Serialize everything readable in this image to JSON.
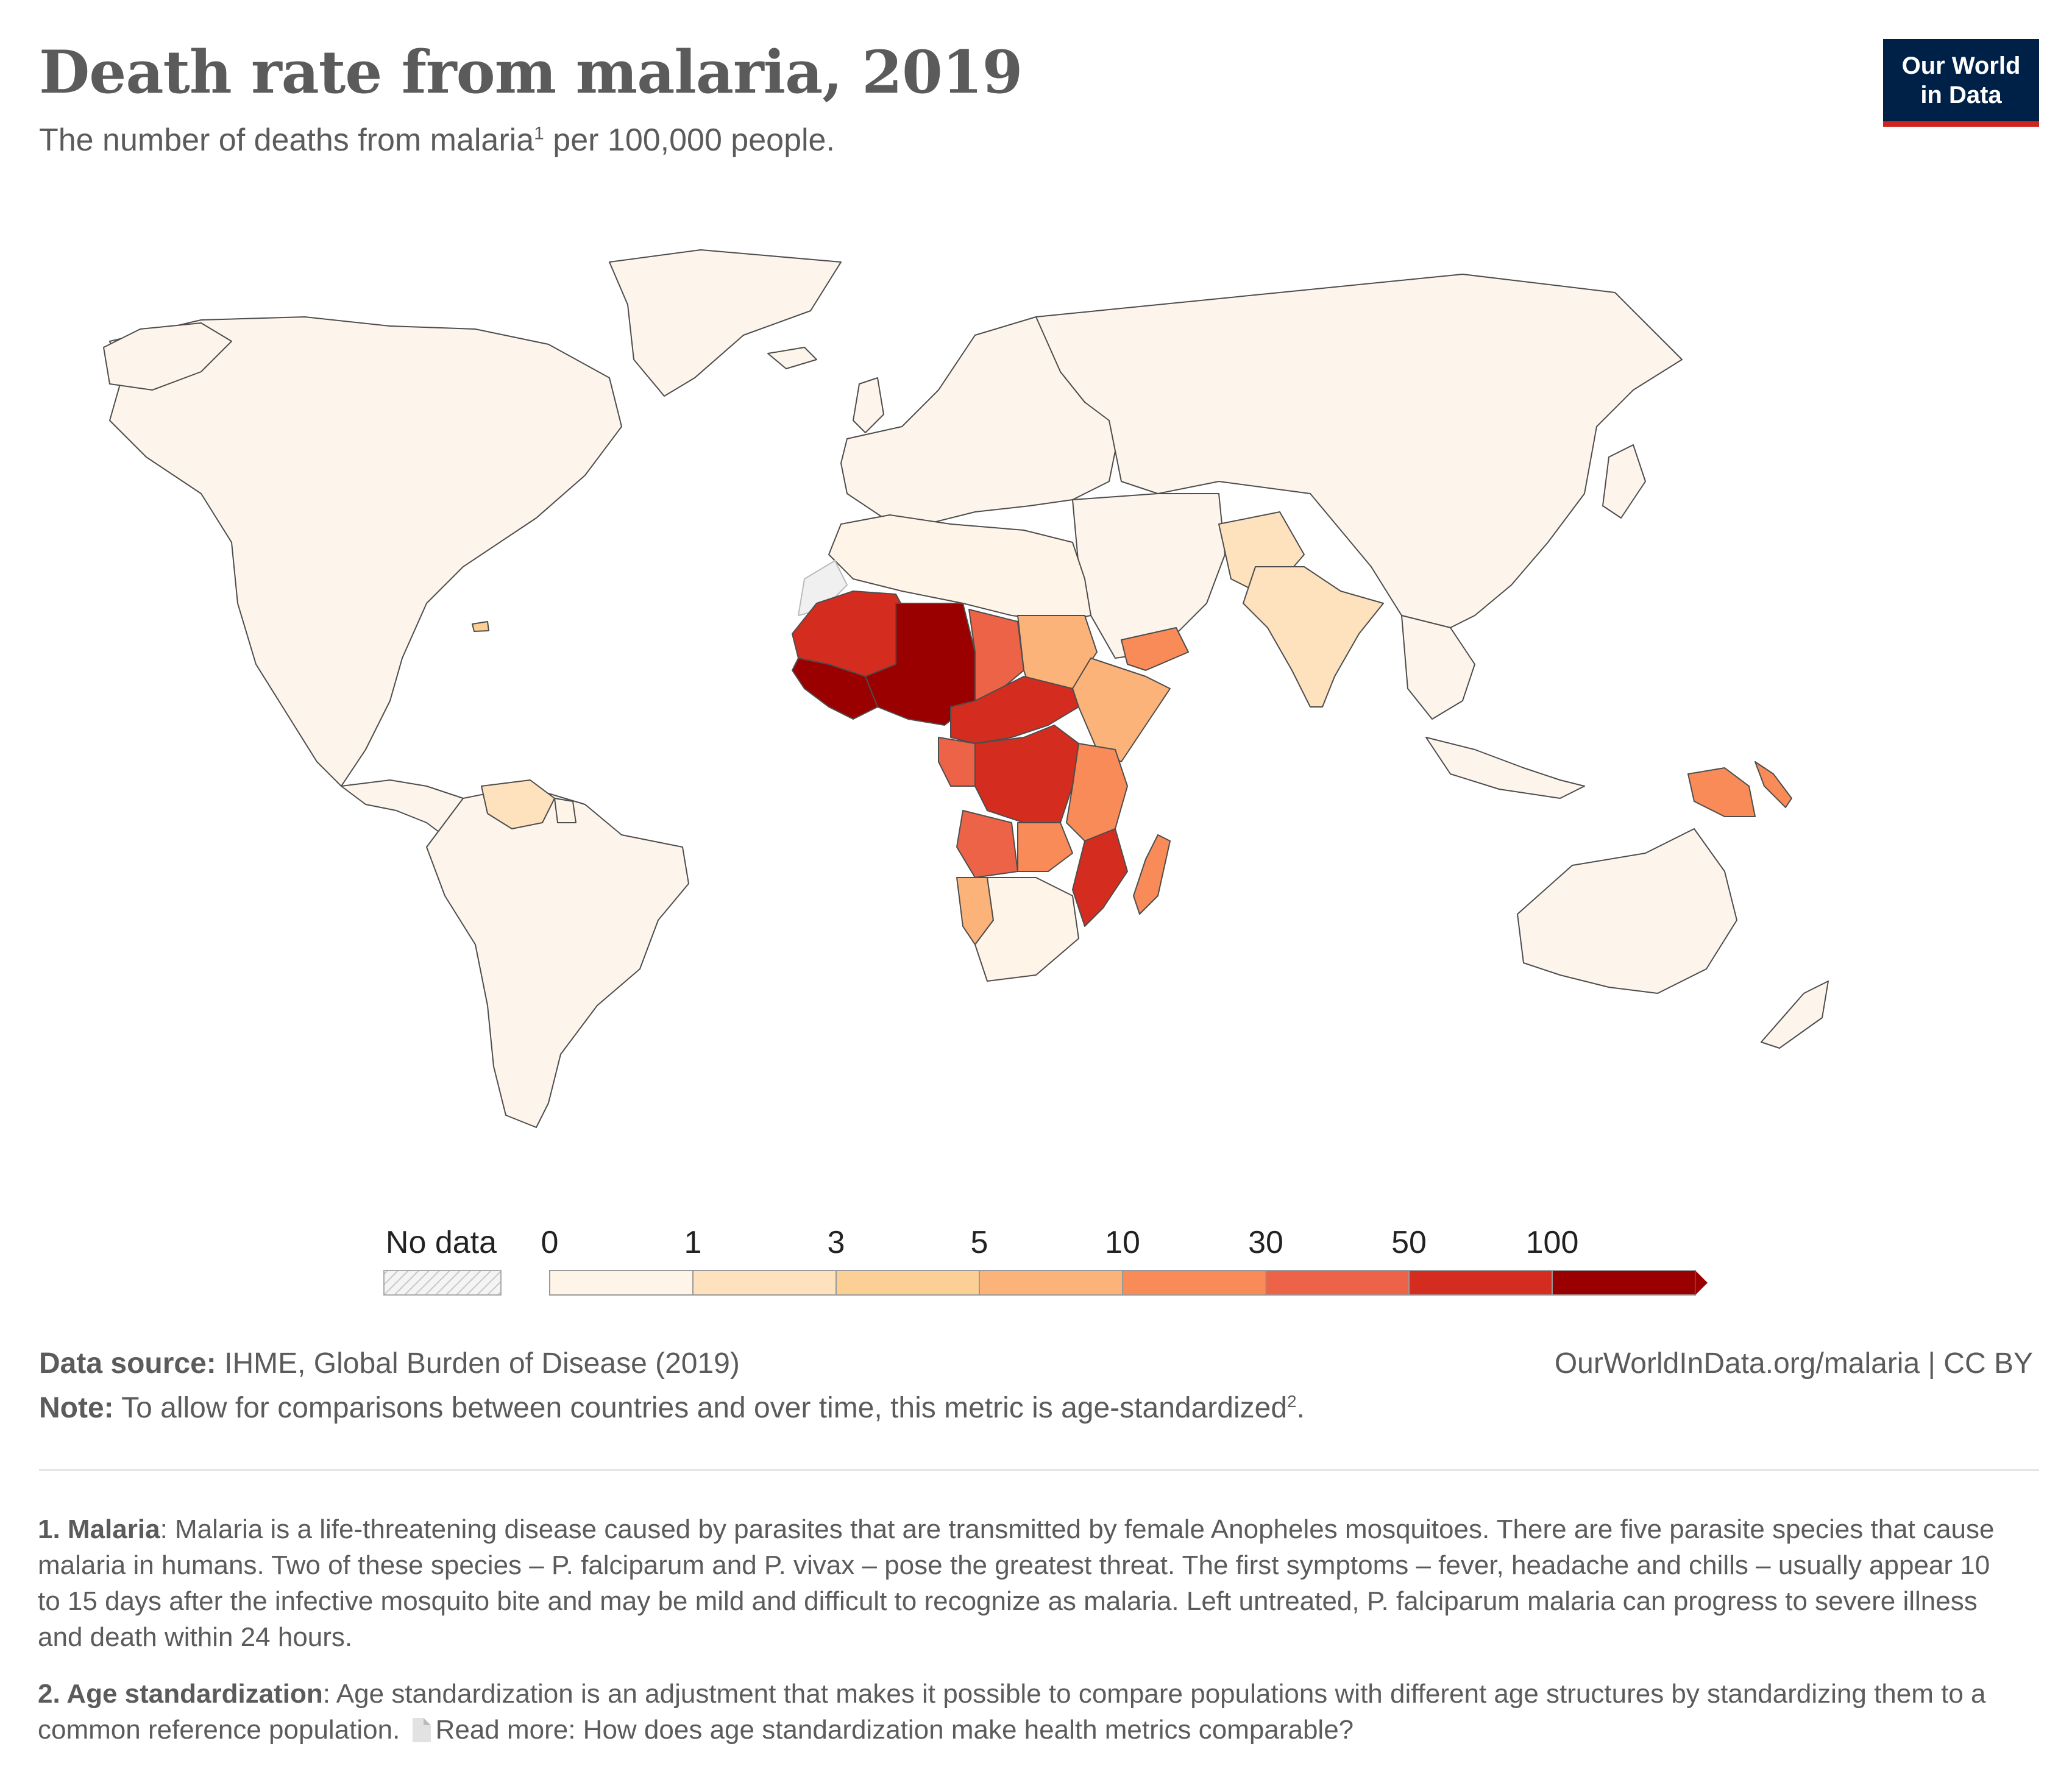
{
  "header": {
    "title": "Death rate from malaria, 2019",
    "subtitle_pre": "The number of deaths from malaria",
    "subtitle_sup": "1",
    "subtitle_post": " per 100,000 people."
  },
  "logo": {
    "line1": "Our World",
    "line2": "in Data"
  },
  "legend": {
    "no_data_label": "No data",
    "ticks": [
      "0",
      "1",
      "3",
      "5",
      "10",
      "30",
      "50",
      "100"
    ],
    "colors": [
      "#fff4e8",
      "#fee1bd",
      "#fcd095",
      "#fbb37a",
      "#f88b57",
      "#ed6347",
      "#d52c20",
      "#9b0000"
    ],
    "no_data_color": "#f0f0f0"
  },
  "map_colors": {
    "land_low": "#fdf5ec",
    "border": "#4d4d4d",
    "c_0_1": "#fff4e8",
    "c_1_3": "#fee1bd",
    "c_3_5": "#fcd095",
    "c_5_10": "#fbb37a",
    "c_10_30": "#f88b57",
    "c_30_50": "#ed6347",
    "c_50_100": "#d52c20",
    "c_100": "#9b0000"
  },
  "footer": {
    "source_label": "Data source:",
    "source_text": " IHME, Global Burden of Disease (2019)",
    "credit": "OurWorldInData.org/malaria | CC BY",
    "note_label": "Note:",
    "note_text": " To allow for comparisons between countries and over time, this metric is age-standardized",
    "note_sup": "2",
    "note_end": "."
  },
  "footnotes": {
    "f1_label": "1. Malaria",
    "f1_text": ": Malaria is a life-threatening disease caused by parasites that are transmitted by female Anopheles mosquitoes. There are five parasite species that cause malaria in humans. Two of these species – P. falciparum and P. vivax – pose the greatest threat. The first symptoms – fever, headache and chills – usually appear 10 to 15 days after the infective mosquito bite and may be mild and difficult to recognize as malaria. Left untreated, P. falciparum malaria can progress to severe illness and death within 24 hours.",
    "f2_label": "2. Age standardization",
    "f2_text": ": Age standardization is an adjustment that makes it possible to compare populations with different age structures by standardizing them to a common reference population.",
    "f2_link": "Read more: How does age standardization make health metrics comparable?"
  }
}
